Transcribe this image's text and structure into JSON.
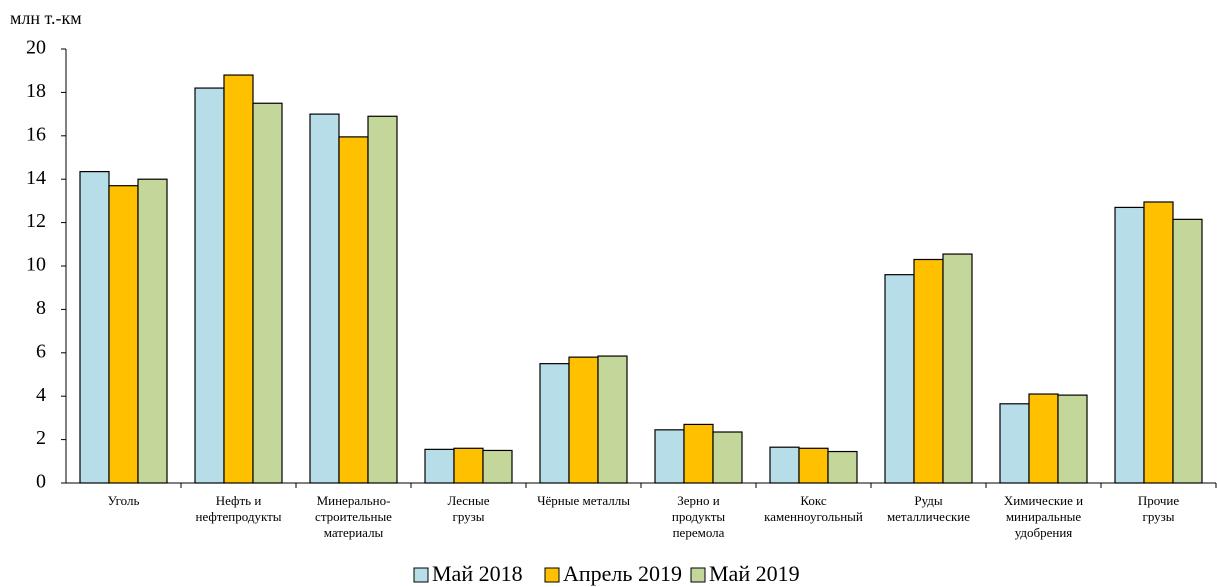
{
  "chart_data": {
    "type": "bar",
    "y_axis_label": "млн т.-км",
    "categories": [
      "Уголь",
      "Нефть и\nнефтепродукты",
      "Минерально-\nстроительные\nматериалы",
      "Лесные\nгрузы",
      "Чёрные металлы",
      "Зерно и\nпродукты\nперемола",
      "Кокс\nкаменноугольный",
      "Руды\nметаллические",
      "Химические и\nминиральные\nудобрения",
      "Прочие\nгрузы"
    ],
    "series": [
      {
        "name": "Май 2018",
        "color": "#b7dde8",
        "values": [
          14.35,
          18.2,
          17.0,
          1.55,
          5.5,
          2.45,
          1.65,
          9.6,
          3.65,
          12.7
        ]
      },
      {
        "name": "Апрель 2019",
        "color": "#ffc000",
        "values": [
          13.7,
          18.8,
          15.95,
          1.6,
          5.8,
          2.7,
          1.6,
          10.3,
          4.1,
          12.95
        ]
      },
      {
        "name": "Май 2019",
        "color": "#c4d79b",
        "values": [
          14.0,
          17.5,
          16.9,
          1.5,
          5.85,
          2.35,
          1.45,
          10.55,
          4.05,
          12.15
        ]
      }
    ],
    "ylim": [
      0,
      20
    ],
    "yticks": [
      0,
      2,
      4,
      6,
      8,
      10,
      12,
      14,
      16,
      18,
      20
    ],
    "legend": "bottom"
  }
}
